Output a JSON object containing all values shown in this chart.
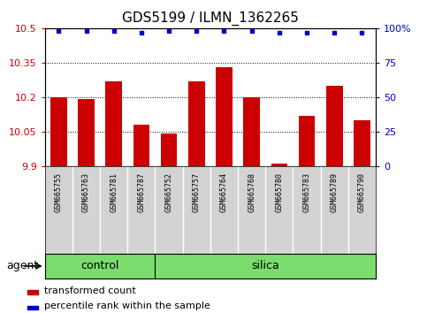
{
  "title": "GDS5199 / ILMN_1362265",
  "samples": [
    "GSM665755",
    "GSM665763",
    "GSM665781",
    "GSM665787",
    "GSM665752",
    "GSM665757",
    "GSM665764",
    "GSM665768",
    "GSM665780",
    "GSM665783",
    "GSM665789",
    "GSM665790"
  ],
  "bar_values": [
    10.2,
    10.19,
    10.27,
    10.08,
    10.04,
    10.27,
    10.33,
    10.2,
    9.91,
    10.12,
    10.25,
    10.1
  ],
  "percentile_values": [
    98,
    98,
    98,
    97,
    98,
    98,
    98,
    98,
    97,
    97,
    97,
    97
  ],
  "bar_color": "#CC0000",
  "percentile_color": "#0000CC",
  "ylim_left": [
    9.9,
    10.5
  ],
  "ylim_right": [
    0,
    100
  ],
  "yticks_left": [
    9.9,
    10.05,
    10.2,
    10.35,
    10.5
  ],
  "yticks_right": [
    0,
    25,
    50,
    75,
    100
  ],
  "ytick_labels_left": [
    "9.9",
    "10.05",
    "10.2",
    "10.35",
    "10.5"
  ],
  "ytick_labels_right": [
    "0",
    "25",
    "50",
    "75",
    "100%"
  ],
  "n_control": 4,
  "n_total": 12,
  "agent_label": "agent",
  "control_label": "control",
  "silica_label": "silica",
  "legend_bar_label": "transformed count",
  "legend_dot_label": "percentile rank within the sample",
  "bar_width": 0.6,
  "bar_color_hex": "#CC0000",
  "percentile_color_hex": "#0000CC",
  "label_gray": "#d3d3d3",
  "green_color": "#7cdd6f",
  "title_fontsize": 11,
  "tick_fontsize": 8,
  "sample_fontsize": 6,
  "legend_fontsize": 8,
  "agent_fontsize": 9
}
